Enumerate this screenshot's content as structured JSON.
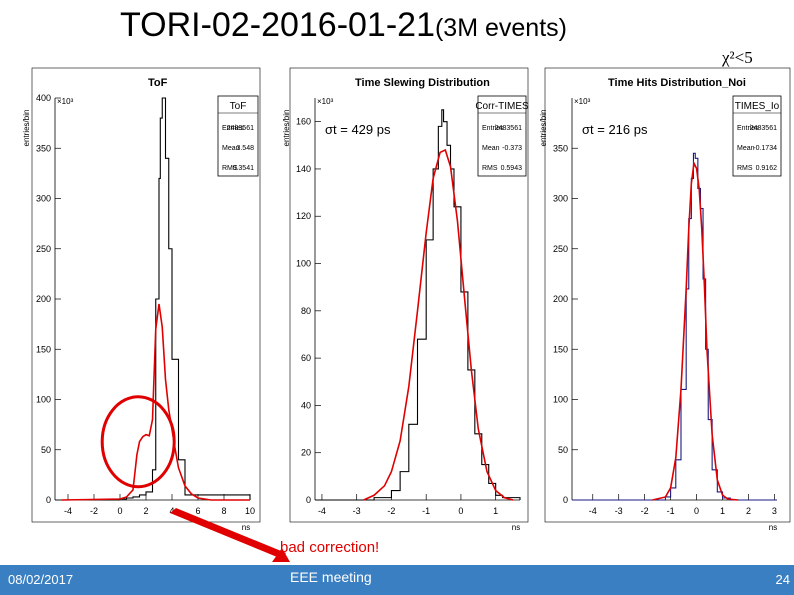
{
  "slide": {
    "title_main": "TORI-02-2016-01-21",
    "title_sub": "(3M events)",
    "chi_label": "χ²<5",
    "annotation": "bad correction!",
    "footer_date": "08/02/2017",
    "footer_meeting": "EEE meeting",
    "footer_page": "24",
    "colors": {
      "footer": "#3a7fc2",
      "annotation": "#e00000",
      "fit": "#e00000",
      "hist_dark": "#000000",
      "hist_blue": "#1a1a80"
    }
  },
  "chart_data": [
    {
      "type": "line",
      "title": "ToF",
      "ylabel": "entries/bin",
      "xlabel": "ns",
      "y_multiplier": "×10³",
      "xlim": [
        -5,
        10
      ],
      "ylim": [
        0,
        400
      ],
      "xticks": [
        -4,
        -2,
        0,
        2,
        4,
        6,
        8,
        10
      ],
      "yticks": [
        0,
        50,
        100,
        150,
        200,
        250,
        300,
        350,
        400
      ],
      "stats": {
        "name": "ToF",
        "rows": [
          [
            "Entries",
            "2483561"
          ],
          [
            "Mean",
            "3.548"
          ],
          [
            "RMS",
            "0.3541"
          ]
        ]
      },
      "sigma_label": "",
      "series": [
        {
          "color": "#000000",
          "x": [
            -4.5,
            0.0,
            0.5,
            1.0,
            1.5,
            2.0,
            2.5,
            2.75,
            3.0,
            3.1,
            3.25,
            3.5,
            3.75,
            4.0,
            4.5,
            5.0,
            10.0
          ],
          "y": [
            0,
            1,
            2,
            3,
            5,
            8,
            30,
            200,
            320,
            380,
            400,
            340,
            250,
            140,
            40,
            5,
            0
          ]
        },
        {
          "color": "#e00000",
          "x": [
            -4.5,
            0.0,
            0.5,
            1.0,
            1.3,
            1.5,
            1.75,
            2.0,
            2.25,
            2.5,
            2.75,
            3.0,
            3.25,
            3.5,
            3.75,
            4.0,
            4.25,
            4.5,
            5.0,
            5.5,
            6.0,
            6.5,
            7.0,
            10.0
          ],
          "y": [
            0,
            1,
            3,
            10,
            45,
            58,
            63,
            65,
            64,
            80,
            170,
            195,
            172,
            120,
            90,
            70,
            50,
            32,
            14,
            6,
            2,
            1,
            0,
            0
          ]
        }
      ],
      "circle": true
    },
    {
      "type": "line",
      "title": "Time Slewing Distribution",
      "ylabel": "entries/bin",
      "xlabel": "ns",
      "y_multiplier": "×10³",
      "xlim": [
        -4.2,
        1.7
      ],
      "ylim": [
        0,
        170
      ],
      "xticks": [
        -4,
        -3,
        -2,
        -1,
        0,
        1
      ],
      "yticks": [
        0,
        20,
        40,
        60,
        80,
        100,
        120,
        140,
        160
      ],
      "stats": {
        "name": "Corr-TIMES",
        "rows": [
          [
            "Entries",
            "2483561"
          ],
          [
            "Mean",
            "-0.373"
          ],
          [
            "RMS",
            "0.5943"
          ]
        ]
      },
      "sigma_label": "σt = 429 ps",
      "series": [
        {
          "color": "#000000",
          "x": [
            -4.2,
            -2.5,
            -2.0,
            -1.75,
            -1.5,
            -1.25,
            -1.0,
            -0.8,
            -0.65,
            -0.55,
            -0.5,
            -0.4,
            -0.3,
            -0.2,
            0.0,
            0.2,
            0.4,
            0.6,
            0.8,
            1.0,
            1.2,
            1.7
          ],
          "y": [
            0,
            1,
            4,
            12,
            32,
            68,
            110,
            140,
            158,
            165,
            160,
            150,
            140,
            124,
            88,
            55,
            28,
            15,
            7,
            2,
            1,
            0
          ]
        },
        {
          "color": "#e00000",
          "x": [
            -2.8,
            -2.5,
            -2.2,
            -2.0,
            -1.75,
            -1.5,
            -1.25,
            -1.0,
            -0.8,
            -0.6,
            -0.45,
            -0.3,
            -0.1,
            0.1,
            0.3,
            0.5,
            0.75,
            1.0,
            1.25,
            1.5
          ],
          "y": [
            0,
            2,
            6,
            12,
            25,
            48,
            80,
            113,
            136,
            147,
            148,
            141,
            118,
            86,
            55,
            30,
            12,
            4,
            1,
            0
          ]
        }
      ],
      "circle": false
    },
    {
      "type": "line",
      "title": "Time Hits Distribution_Noi",
      "ylabel": "entries/bin",
      "xlabel": "ns",
      "y_multiplier": "×10³",
      "xlim": [
        -4.8,
        3.1
      ],
      "ylim": [
        0,
        400
      ],
      "xticks": [
        -4,
        -3,
        -2,
        -1,
        0,
        1,
        2,
        3
      ],
      "yticks": [
        0,
        50,
        100,
        150,
        200,
        250,
        300,
        350
      ],
      "stats": {
        "name": "TIMES_Io",
        "rows": [
          [
            "Entries",
            "2483561"
          ],
          [
            "Mean",
            "-0.1734"
          ],
          [
            "RMS",
            "0.9162"
          ]
        ]
      },
      "sigma_label": "σt = 216 ps",
      "series": [
        {
          "color": "#1a1a80",
          "x": [
            -4.8,
            -1.5,
            -1.2,
            -1.0,
            -0.8,
            -0.6,
            -0.4,
            -0.3,
            -0.2,
            -0.12,
            -0.05,
            0.05,
            0.15,
            0.25,
            0.35,
            0.45,
            0.6,
            0.8,
            1.0,
            1.3,
            3.1
          ],
          "y": [
            0,
            0,
            3,
            12,
            40,
            110,
            210,
            280,
            320,
            345,
            340,
            310,
            290,
            220,
            150,
            80,
            30,
            8,
            2,
            0,
            0
          ]
        },
        {
          "color": "#e00000",
          "x": [
            -1.7,
            -1.2,
            -1.0,
            -0.8,
            -0.6,
            -0.4,
            -0.3,
            -0.2,
            -0.1,
            0.0,
            0.1,
            0.2,
            0.3,
            0.4,
            0.6,
            0.8,
            1.0,
            1.2,
            1.6
          ],
          "y": [
            0,
            3,
            12,
            42,
            110,
            210,
            270,
            315,
            335,
            330,
            310,
            270,
            215,
            150,
            65,
            20,
            5,
            1,
            0
          ]
        }
      ],
      "circle": false
    }
  ]
}
